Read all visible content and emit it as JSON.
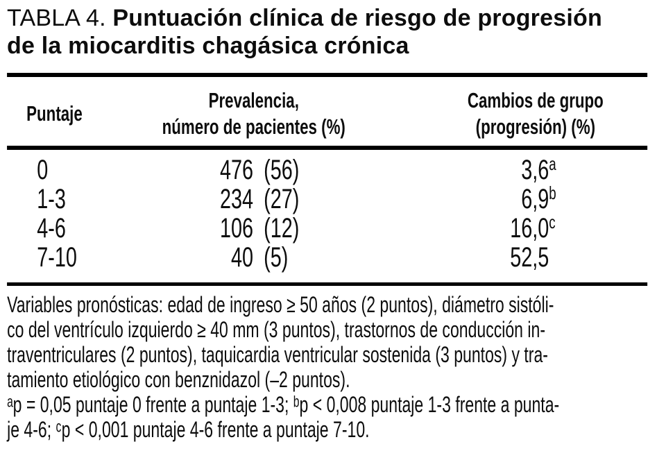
{
  "title": {
    "prefix": "TABLA 4. ",
    "bold_rest": "Puntuación clínica de riesgo de progresión",
    "line2": "de la miocarditis chagásica crónica"
  },
  "table": {
    "headers": {
      "col1": "Puntaje",
      "col2_line1": "Prevalencia,",
      "col2_line2": "número de pacientes (%)",
      "col3_line1": "Cambios de grupo",
      "col3_line2": "(progresión) (%)"
    },
    "rows": [
      {
        "score": "0",
        "n": "476",
        "pct": "(56)",
        "prog": "3,6",
        "sup": "a"
      },
      {
        "score": "1-3",
        "n": "234",
        "pct": "(27)",
        "prog": "6,9",
        "sup": "b"
      },
      {
        "score": "4-6",
        "n": "106",
        "pct": "(12)",
        "prog": "16,0",
        "sup": "c"
      },
      {
        "score": "7-10",
        "n": "40",
        "pct": "(5)",
        "prog": "52,5",
        "sup": ""
      }
    ]
  },
  "footnotes": {
    "lines": [
      "Variables pronósticas: edad de ingreso ≥ 50 años (2 puntos), diámetro sistóli-",
      "co del ventrículo izquierdo ≥ 40 mm (3 puntos), trastornos de conducción in-",
      "traventriculares (2 puntos), taquicardia ventricular sostenida (3 puntos) y tra-",
      "tamiento etiológico con benznidazol (–2 puntos).",
      "ᵃp = 0,05 puntaje 0 frente a puntaje 1-3; ᵇp < 0,008 puntaje 1-3 frente a punta-",
      "je 4-6; ᶜp < 0,001 puntaje 4-6 frente a puntaje 7-10."
    ]
  },
  "colors": {
    "text": "#0d0d0d",
    "rule": "#000000",
    "background": "#ffffff"
  }
}
